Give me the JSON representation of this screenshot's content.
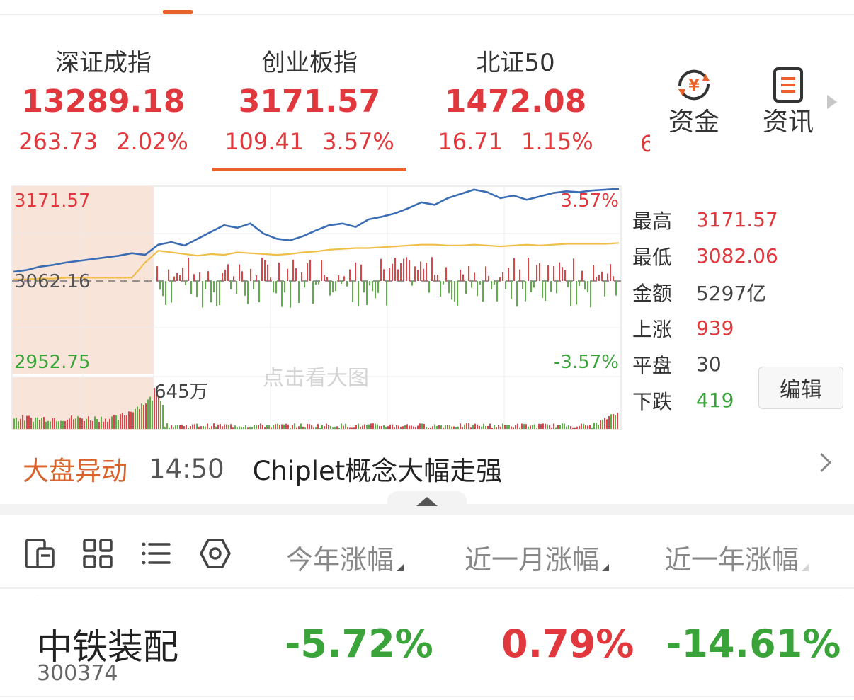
{
  "indices": [
    {
      "name": "深证成指",
      "value": "13289.18",
      "change": "263.73",
      "pct": "2.02%"
    },
    {
      "name": "创业板指",
      "value": "3171.57",
      "change": "109.41",
      "pct": "3.57%",
      "selected": true
    },
    {
      "name": "北证50",
      "value": "1472.08",
      "change": "16.71",
      "pct": "1.15%"
    }
  ],
  "shortcuts": [
    {
      "label": "资金",
      "icon": "yuan-flow-icon"
    },
    {
      "label": "资讯",
      "icon": "news-icon"
    }
  ],
  "chart": {
    "high_label": "3171.57",
    "base_label": "3062.16",
    "low_label": "2952.75",
    "up_pct_label": "3.57%",
    "down_pct_label": "-3.57%",
    "volume_label": "645万",
    "watermark": "点击看大图"
  },
  "chart_data": {
    "type": "line",
    "series": [
      {
        "color": "#3b6db4",
        "values": [
          3073,
          3075,
          3079,
          3081,
          3084,
          3086,
          3088,
          3090,
          3092,
          3095,
          3093,
          3105,
          3108,
          3104,
          3112,
          3120,
          3128,
          3125,
          3130,
          3118,
          3112,
          3110,
          3115,
          3122,
          3128,
          3130,
          3126,
          3135,
          3138,
          3142,
          3148,
          3155,
          3152,
          3160,
          3165,
          3170,
          3167,
          3160,
          3163,
          3158,
          3162,
          3166,
          3168,
          3167,
          3169,
          3170,
          3171
        ]
      },
      {
        "color": "#efbf4a",
        "values": [
          3064,
          3064,
          3065,
          3065,
          3066,
          3066,
          3066,
          3066,
          3066,
          3066,
          3084,
          3098,
          3096,
          3094,
          3092,
          3094,
          3093,
          3096,
          3095,
          3094,
          3093,
          3094,
          3096,
          3097,
          3099,
          3100,
          3101,
          3101,
          3102,
          3103,
          3104,
          3105,
          3105,
          3104,
          3104,
          3105,
          3104,
          3103,
          3104,
          3105,
          3104,
          3105,
          3106,
          3106,
          3106,
          3106,
          3107
        ]
      }
    ],
    "ylim": [
      2952.75,
      3171.57
    ],
    "base": 3062.16
  },
  "stats": [
    {
      "label": "最高",
      "value": "3171.57",
      "tone": "red"
    },
    {
      "label": "最低",
      "value": "3082.06",
      "tone": "red"
    },
    {
      "label": "金额",
      "value": "5297亿",
      "tone": "neutral"
    },
    {
      "label": "上涨",
      "value": "939",
      "tone": "red"
    },
    {
      "label": "平盘",
      "value": "30",
      "tone": "neutral"
    },
    {
      "label": "下跌",
      "value": "419",
      "tone": "green"
    }
  ],
  "edit_label": "编辑",
  "alert": {
    "tag": "大盘异动",
    "time": "14:50",
    "text": "Chiplet概念大幅走强"
  },
  "columns": [
    "今年涨幅",
    "近一月涨幅",
    "近一年涨幅"
  ],
  "stocks": [
    {
      "name": "中铁装配",
      "code": "300374",
      "values": [
        "-5.72%",
        "0.79%",
        "-14.61%"
      ]
    }
  ],
  "colors": {
    "up": "#e0383c",
    "down": "#3aa33a",
    "accent": "#e8622a"
  }
}
